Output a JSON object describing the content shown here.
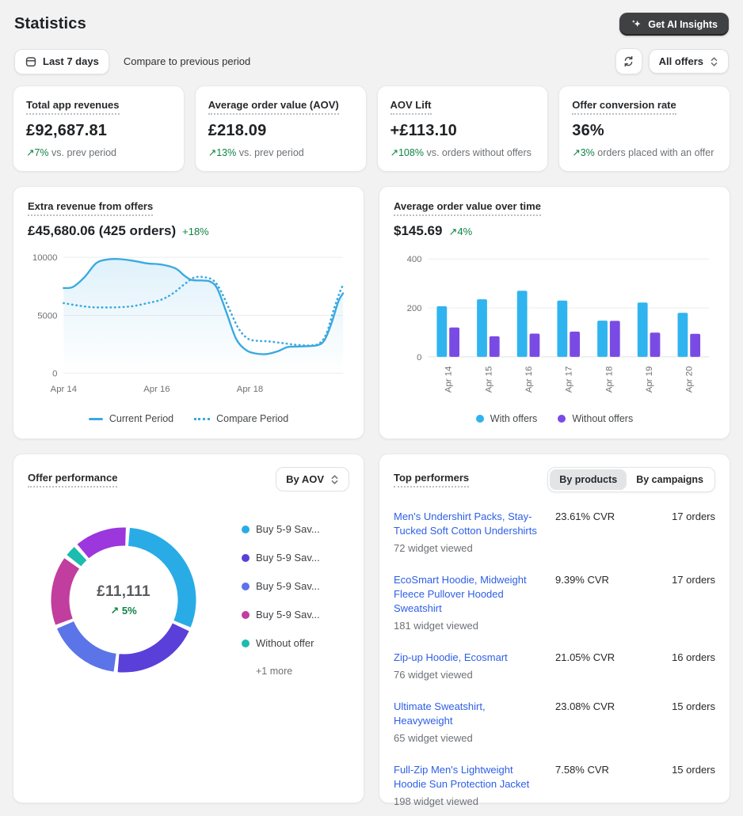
{
  "page": {
    "title": "Statistics"
  },
  "header": {
    "ai_button": "Get AI Insights"
  },
  "controls": {
    "date_range": "Last 7 days",
    "compare_label": "Compare to previous period",
    "offers_filter": "All offers"
  },
  "kpis": [
    {
      "title": "Total app revenues",
      "value": "£92,687.81",
      "delta": "↗7%",
      "delta_text": "vs. prev period"
    },
    {
      "title": "Average order value (AOV)",
      "value": "£218.09",
      "delta": "↗13%",
      "delta_text": "vs. prev period"
    },
    {
      "title": "AOV Lift",
      "value": "+£113.10",
      "delta": "↗108%",
      "delta_text": "vs. orders without offers"
    },
    {
      "title": "Offer conversion rate",
      "value": "36%",
      "delta": "↗3%",
      "delta_text": "orders placed with an offer"
    }
  ],
  "chart_data": [
    {
      "type": "line",
      "title": "Extra revenue from offers",
      "value": "£45,680.06 (425 orders)",
      "delta": "+18%",
      "x_range": [
        0,
        6
      ],
      "ylim": [
        0,
        10500
      ],
      "y_ticks": [
        0,
        5000,
        10000
      ],
      "x_ticks": [
        {
          "pos": 0,
          "label": "Apr 14"
        },
        {
          "pos": 2,
          "label": "Apr 16"
        },
        {
          "pos": 4,
          "label": "Apr 18"
        }
      ],
      "grid": true,
      "legend_position": "bottom",
      "series": [
        {
          "name": "Current Period",
          "style": "solid",
          "color": "#3aa9e0",
          "area": true,
          "points": [
            [
              0,
              7350
            ],
            [
              0.2,
              7450
            ],
            [
              0.45,
              8300
            ],
            [
              0.7,
              9500
            ],
            [
              0.95,
              9820
            ],
            [
              1.2,
              9850
            ],
            [
              1.5,
              9700
            ],
            [
              1.8,
              9480
            ],
            [
              2.1,
              9380
            ],
            [
              2.4,
              9050
            ],
            [
              2.6,
              8400
            ],
            [
              2.75,
              8050
            ],
            [
              3.0,
              8000
            ],
            [
              3.15,
              7900
            ],
            [
              3.3,
              7300
            ],
            [
              3.5,
              5200
            ],
            [
              3.7,
              3000
            ],
            [
              3.9,
              2050
            ],
            [
              4.1,
              1720
            ],
            [
              4.35,
              1650
            ],
            [
              4.6,
              1900
            ],
            [
              4.8,
              2250
            ],
            [
              5.0,
              2300
            ],
            [
              5.2,
              2330
            ],
            [
              5.45,
              2420
            ],
            [
              5.6,
              2850
            ],
            [
              5.75,
              4300
            ],
            [
              5.9,
              6200
            ],
            [
              6,
              6900
            ]
          ]
        },
        {
          "name": "Compare Period",
          "style": "dotted",
          "color": "#3aa9e0",
          "area": false,
          "points": [
            [
              0,
              6050
            ],
            [
              0.3,
              5850
            ],
            [
              0.6,
              5700
            ],
            [
              0.9,
              5680
            ],
            [
              1.2,
              5700
            ],
            [
              1.5,
              5800
            ],
            [
              1.8,
              6050
            ],
            [
              2.1,
              6350
            ],
            [
              2.35,
              6900
            ],
            [
              2.6,
              7700
            ],
            [
              2.8,
              8250
            ],
            [
              3.0,
              8300
            ],
            [
              3.2,
              8050
            ],
            [
              3.35,
              7300
            ],
            [
              3.55,
              5600
            ],
            [
              3.75,
              3900
            ],
            [
              3.95,
              3000
            ],
            [
              4.15,
              2800
            ],
            [
              4.4,
              2750
            ],
            [
              4.7,
              2600
            ],
            [
              5.0,
              2450
            ],
            [
              5.3,
              2400
            ],
            [
              5.5,
              2600
            ],
            [
              5.65,
              3500
            ],
            [
              5.8,
              5500
            ],
            [
              5.95,
              7200
            ],
            [
              6,
              7550
            ]
          ]
        }
      ]
    },
    {
      "type": "bar",
      "title": "Average order value over time",
      "value": "$145.69",
      "delta": "↗4%",
      "categories": [
        "Apr 14",
        "Apr 15",
        "Apr 16",
        "Apr 17",
        "Apr 18",
        "Apr 19",
        "Apr 20"
      ],
      "ylim": [
        0,
        430
      ],
      "y_ticks": [
        0,
        200,
        400
      ],
      "grid": true,
      "legend_position": "bottom",
      "series": [
        {
          "name": "With offers",
          "color": "#2fb4ef",
          "values": [
            207,
            235,
            270,
            230,
            148,
            222,
            180
          ]
        },
        {
          "name": "Without offers",
          "color": "#7a4be4",
          "values": [
            120,
            84,
            95,
            103,
            147,
            99,
            94
          ]
        }
      ]
    },
    {
      "type": "donut",
      "title": "Offer performance",
      "center_value": "£11,111",
      "center_delta": "↗ 5%",
      "more_label": "+1 more",
      "segments": [
        {
          "label": "Buy 5-9 Sav...",
          "color": "#29ace6",
          "value": 31
        },
        {
          "label": "Buy 5-9 Sav...",
          "color": "#5b3fd9",
          "value": 20
        },
        {
          "label": "Buy 5-9 Sav...",
          "color": "#5b74e8",
          "value": 17
        },
        {
          "label": "Buy 5-9 Sav...",
          "color": "#c13d9e",
          "value": 16
        },
        {
          "label": "Without offer",
          "color": "#1cbcae",
          "value": 2.5
        },
        {
          "label": "+1 more",
          "color": "#9c36dd",
          "value": 12
        }
      ]
    }
  ],
  "panels": {
    "offer_performance": {
      "title": "Offer performance",
      "sort_label": "By AOV"
    },
    "top_performers": {
      "title": "Top performers",
      "tab_products": "By products",
      "tab_campaigns": "By campaigns",
      "rows": [
        {
          "title": "Men's Undershirt Packs, Stay-Tucked Soft Cotton Undershirts",
          "sub": "72 widget viewed",
          "cvr": "23.61% CVR",
          "orders": "17 orders"
        },
        {
          "title": "EcoSmart Hoodie, Midweight Fleece Pullover Hooded Sweatshirt",
          "sub": "181 widget viewed",
          "cvr": "9.39% CVR",
          "orders": "17 orders"
        },
        {
          "title": "Zip-up Hoodie, Ecosmart",
          "sub": "76 widget viewed",
          "cvr": "21.05% CVR",
          "orders": "16 orders"
        },
        {
          "title": "Ultimate Sweatshirt, Heavyweight",
          "sub": "65 widget viewed",
          "cvr": "23.08% CVR",
          "orders": "15 orders"
        },
        {
          "title": "Full-Zip Men's Lightweight Hoodie Sun Protection Jacket",
          "sub": "198 widget viewed",
          "cvr": "7.58% CVR",
          "orders": "15 orders"
        }
      ]
    }
  },
  "colors": {
    "success": "#0e8345",
    "link": "#2e5fe6",
    "accent_cyan": "#2fb4ef",
    "accent_purple": "#7a4be4",
    "line_blue": "#3aa9e0"
  }
}
